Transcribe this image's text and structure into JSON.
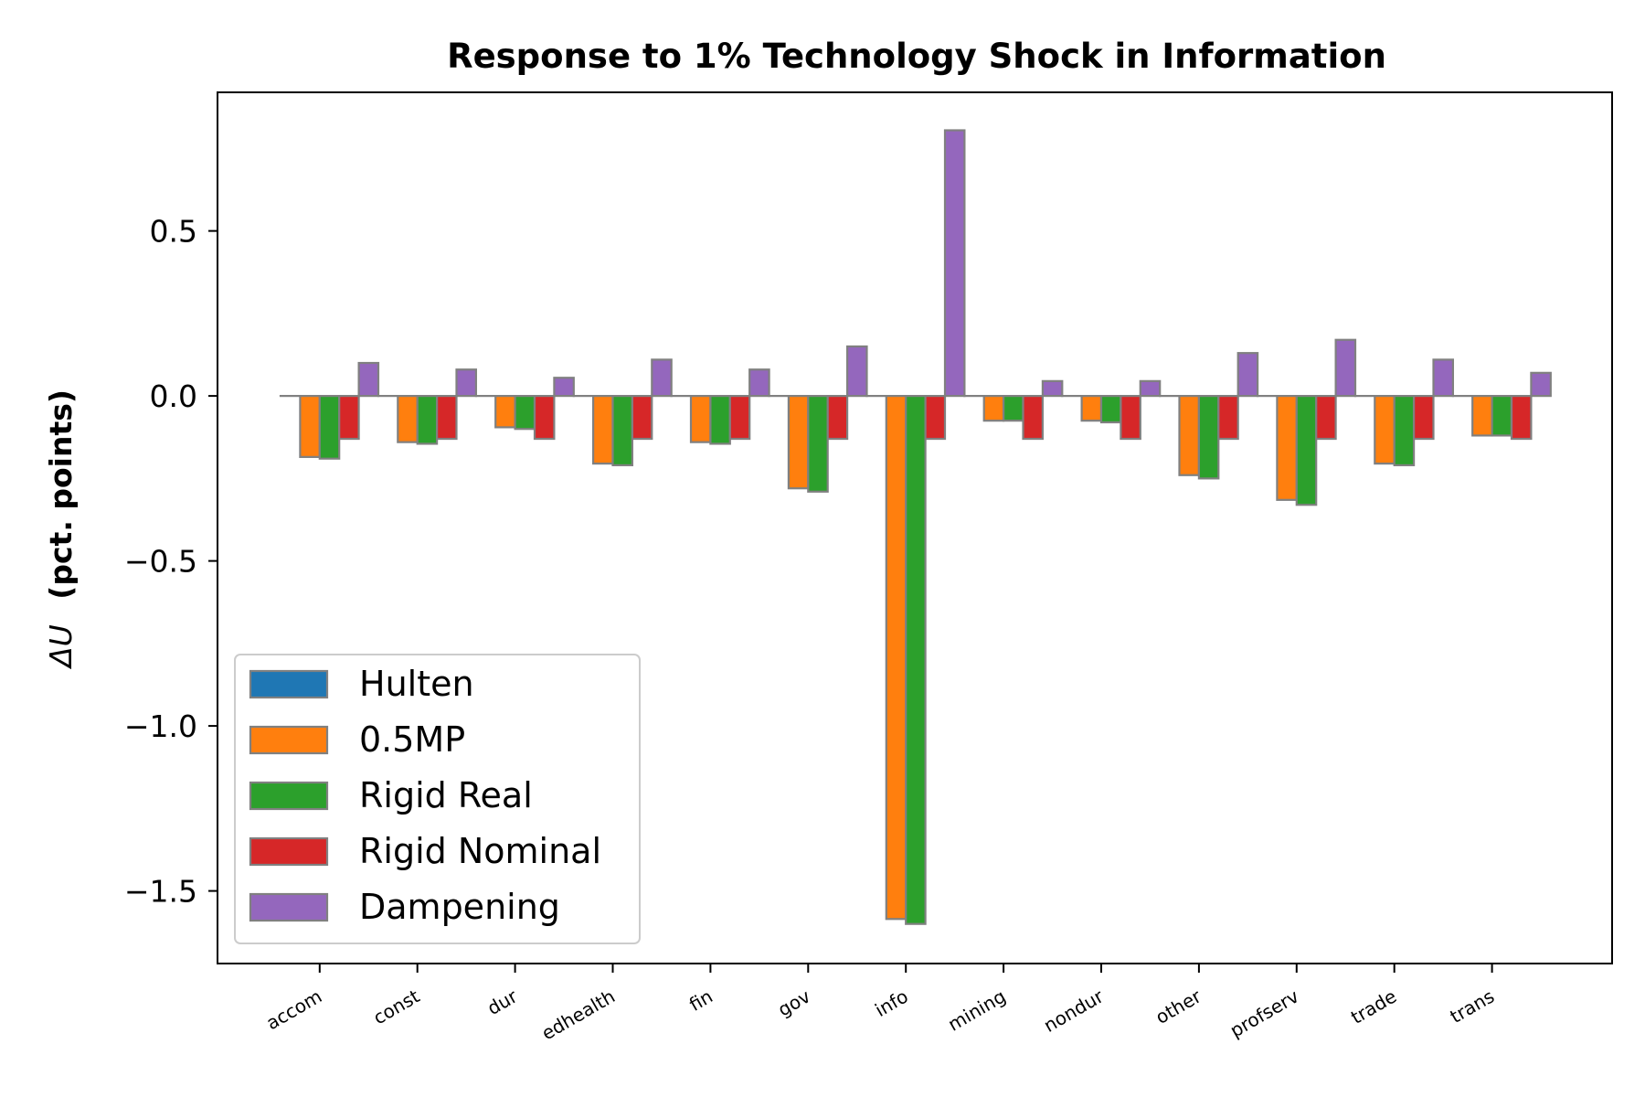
{
  "chart_data": {
    "type": "bar",
    "title": "Response to 1% Technology Shock in Information",
    "ylabel_symbol": "ΔU",
    "ylabel_text": "(pct. points)",
    "xlabel": "",
    "ylim": [
      -1.72,
      0.92
    ],
    "yticks": [
      0.5,
      0.0,
      -0.5,
      -1.0,
      -1.5
    ],
    "ytick_labels": [
      "0.5",
      "0.0",
      "−0.5",
      "−1.0",
      "−1.5"
    ],
    "categories": [
      "accom",
      "const",
      "dur",
      "edhealth",
      "fin",
      "gov",
      "info",
      "mining",
      "nondur",
      "other",
      "profserv",
      "trade",
      "trans"
    ],
    "legend_position": "lower-left",
    "grid": false,
    "bar_edge_color": "#808080",
    "series": [
      {
        "name": "Hulten",
        "color": "#1f77b4",
        "values": [
          0,
          0,
          0,
          0,
          0,
          0,
          0,
          0,
          0,
          0,
          0,
          0,
          0
        ]
      },
      {
        "name": "0.5MP",
        "color": "#ff7f0e",
        "values": [
          -0.185,
          -0.14,
          -0.095,
          -0.205,
          -0.14,
          -0.28,
          -1.585,
          -0.075,
          -0.075,
          -0.24,
          -0.315,
          -0.205,
          -0.12
        ]
      },
      {
        "name": "Rigid Real",
        "color": "#2ca02c",
        "values": [
          -0.19,
          -0.145,
          -0.1,
          -0.21,
          -0.145,
          -0.29,
          -1.6,
          -0.075,
          -0.08,
          -0.25,
          -0.33,
          -0.21,
          -0.12
        ]
      },
      {
        "name": "Rigid Nominal",
        "color": "#d62728",
        "values": [
          -0.13,
          -0.13,
          -0.13,
          -0.13,
          -0.13,
          -0.13,
          -0.13,
          -0.13,
          -0.13,
          -0.13,
          -0.13,
          -0.13,
          -0.13
        ]
      },
      {
        "name": "Dampening",
        "color": "#9467bd",
        "values": [
          0.1,
          0.08,
          0.055,
          0.11,
          0.08,
          0.15,
          0.805,
          0.045,
          0.045,
          0.13,
          0.17,
          0.11,
          0.07
        ]
      }
    ]
  }
}
